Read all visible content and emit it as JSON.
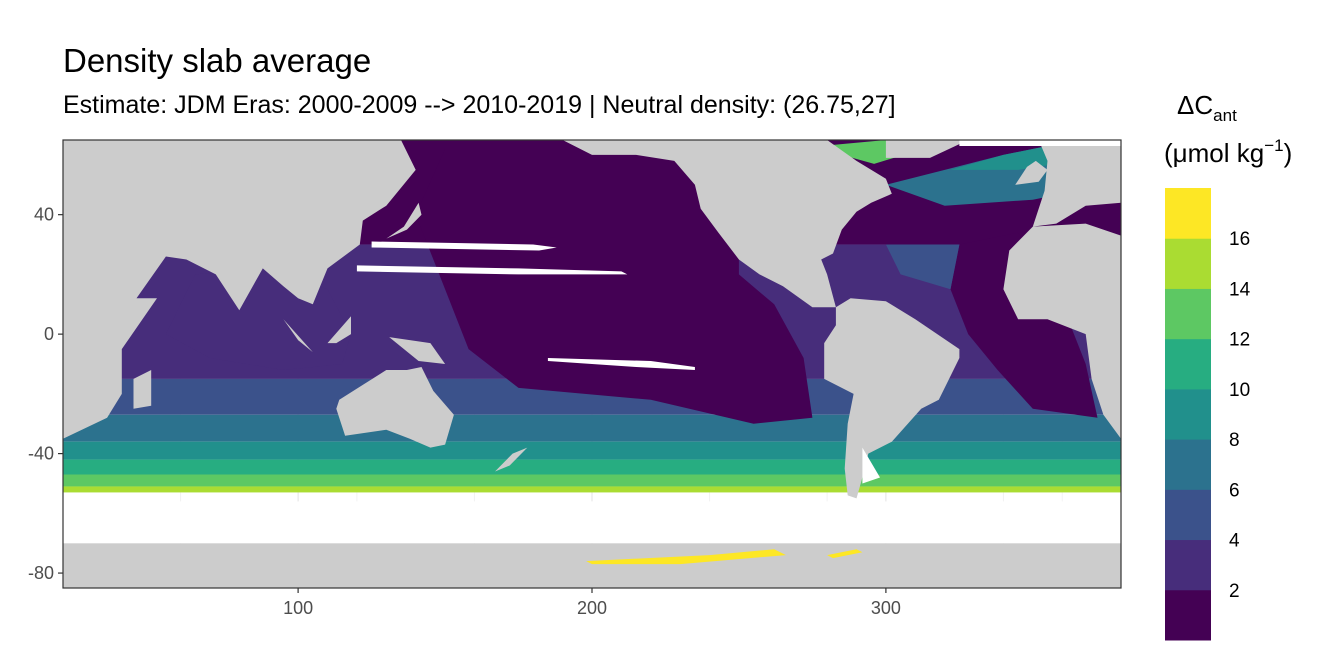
{
  "title": "Density slab average",
  "subtitle": "Estimate: JDM Eras: 2000-2009 --> 2010-2019 | Neutral density: (26.75,27]",
  "legend": {
    "title_symbol": "ΔC",
    "title_subscript": "ant",
    "unit_open": "(μmol kg",
    "unit_superscript": "−1",
    "unit_close": ")",
    "breaks": [
      2,
      4,
      6,
      8,
      10,
      12,
      14,
      16
    ],
    "colors": [
      "#440154",
      "#472d7b",
      "#3b528b",
      "#2c728e",
      "#21908c",
      "#27ad81",
      "#5dc863",
      "#aadc32",
      "#fde725"
    ]
  },
  "chart_data": {
    "type": "heatmap",
    "title": "Density slab average",
    "subtitle": "Estimate: JDM Eras: 2000-2009 --> 2010-2019 | Neutral density: (26.75,27]",
    "x_ticks": [
      100,
      200,
      300
    ],
    "y_ticks": [
      40,
      0,
      -40,
      -80
    ],
    "xlim": [
      20,
      380
    ],
    "ylim": [
      -85,
      65
    ],
    "grid": true,
    "legend_position": "right",
    "land_color": "#cccccc",
    "no_data_color": "#ffffff"
  }
}
